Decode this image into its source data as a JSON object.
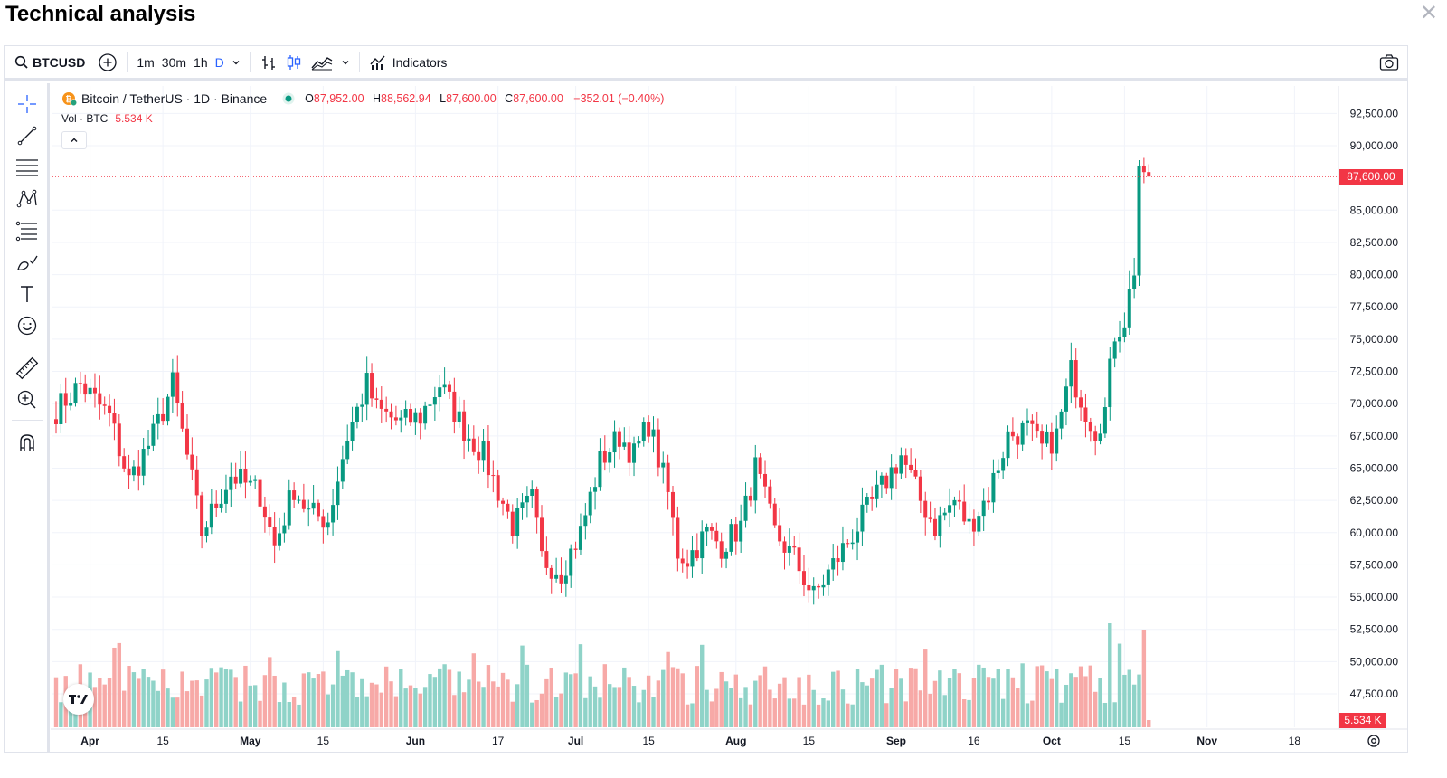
{
  "header": {
    "title": "Technical analysis",
    "close_icon": "close-icon"
  },
  "toolbar": {
    "symbol": "BTCUSD",
    "timeframes": [
      "1m",
      "30m",
      "1h",
      "D"
    ],
    "active_timeframe": "D",
    "indicators_label": "Indicators"
  },
  "legend": {
    "title": "Bitcoin / TetherUS · 1D · Binance",
    "o_label": "O",
    "o_value": "87,952.00",
    "h_label": "H",
    "h_value": "88,562.94",
    "l_label": "L",
    "l_value": "87,600.00",
    "c_label": "C",
    "c_value": "87,600.00",
    "change": "−352.01 (−0.40%)"
  },
  "volume": {
    "label": "Vol · BTC",
    "value": "5.534 K"
  },
  "price_badge": "87,600.00",
  "volume_badge": "5.534 K",
  "colors": {
    "up": "#089981",
    "down": "#f23645",
    "vol_up": "#8fd3c8",
    "vol_down": "#f7a9a7",
    "accent": "#2962ff"
  },
  "chart_data": {
    "type": "candlestick",
    "y_axis_labels": [
      "92,500.00",
      "90,000.00",
      "85,000.00",
      "82,500.00",
      "80,000.00",
      "77,500.00",
      "75,000.00",
      "72,500.00",
      "70,000.00",
      "67,500.00",
      "65,000.00",
      "62,500.00",
      "60,000.00",
      "57,500.00",
      "55,000.00",
      "52,500.00",
      "50,000.00",
      "47,500.00"
    ],
    "x_axis_labels": [
      "Apr",
      "15",
      "May",
      "15",
      "Jun",
      "17",
      "Jul",
      "15",
      "Aug",
      "15",
      "Sep",
      "16",
      "Oct",
      "15",
      "Nov",
      "18"
    ],
    "ylim": [
      45000,
      93500
    ],
    "grid": true,
    "close_anchors": [
      {
        "day": 0,
        "close": 69500
      },
      {
        "day": 5,
        "close": 71500
      },
      {
        "day": 11,
        "close": 69000
      },
      {
        "day": 15,
        "close": 64000
      },
      {
        "day": 20,
        "close": 67500
      },
      {
        "day": 24,
        "close": 71500
      },
      {
        "day": 28,
        "close": 64000
      },
      {
        "day": 30,
        "close": 60000
      },
      {
        "day": 36,
        "close": 64500
      },
      {
        "day": 42,
        "close": 63000
      },
      {
        "day": 45,
        "close": 59000
      },
      {
        "day": 49,
        "close": 63500
      },
      {
        "day": 52,
        "close": 61500
      },
      {
        "day": 56,
        "close": 61000
      },
      {
        "day": 60,
        "close": 67500
      },
      {
        "day": 64,
        "close": 71500
      },
      {
        "day": 66,
        "close": 69500
      },
      {
        "day": 71,
        "close": 68500
      },
      {
        "day": 75,
        "close": 69000
      },
      {
        "day": 79,
        "close": 71500
      },
      {
        "day": 84,
        "close": 68000
      },
      {
        "day": 88,
        "close": 66000
      },
      {
        "day": 94,
        "close": 60500
      },
      {
        "day": 98,
        "close": 62500
      },
      {
        "day": 100,
        "close": 58000
      },
      {
        "day": 104,
        "close": 57000
      },
      {
        "day": 108,
        "close": 60000
      },
      {
        "day": 112,
        "close": 65500
      },
      {
        "day": 116,
        "close": 67500
      },
      {
        "day": 119,
        "close": 66000
      },
      {
        "day": 122,
        "close": 68500
      },
      {
        "day": 126,
        "close": 63000
      },
      {
        "day": 128,
        "close": 58500
      },
      {
        "day": 130,
        "close": 58000
      },
      {
        "day": 134,
        "close": 60000
      },
      {
        "day": 137,
        "close": 59000
      },
      {
        "day": 141,
        "close": 60500
      },
      {
        "day": 144,
        "close": 65000
      },
      {
        "day": 148,
        "close": 60000
      },
      {
        "day": 152,
        "close": 58000
      },
      {
        "day": 156,
        "close": 55000
      },
      {
        "day": 160,
        "close": 57500
      },
      {
        "day": 165,
        "close": 60500
      },
      {
        "day": 170,
        "close": 63500
      },
      {
        "day": 174,
        "close": 66000
      },
      {
        "day": 178,
        "close": 62500
      },
      {
        "day": 181,
        "close": 60500
      },
      {
        "day": 185,
        "close": 62500
      },
      {
        "day": 188,
        "close": 60500
      },
      {
        "day": 192,
        "close": 63000
      },
      {
        "day": 196,
        "close": 67500
      },
      {
        "day": 200,
        "close": 68000
      },
      {
        "day": 203,
        "close": 66500
      },
      {
        "day": 206,
        "close": 67500
      },
      {
        "day": 209,
        "close": 72500
      },
      {
        "day": 212,
        "close": 69500
      },
      {
        "day": 214,
        "close": 68000
      },
      {
        "day": 216,
        "close": 69500
      },
      {
        "day": 218,
        "close": 75500
      },
      {
        "day": 220,
        "close": 76500
      },
      {
        "day": 222,
        "close": 80500
      },
      {
        "day": 223,
        "close": 88500
      },
      {
        "day": 224,
        "close": 87952
      }
    ],
    "last_candle": {
      "open": 87952.0,
      "high": 88562.94,
      "low": 87600.0,
      "close": 87600.0
    },
    "last_volume": "5.534 K"
  }
}
